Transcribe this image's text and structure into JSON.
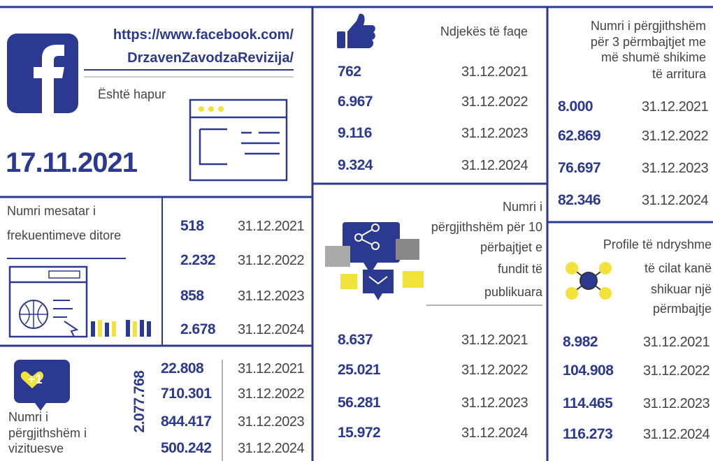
{
  "facebook": {
    "url_line1": "https://www.facebook.com/",
    "url_line2": "DrzavenZavodzaRevizija/",
    "opened_label": "Është hapur",
    "opened_date": "17.11.2021"
  },
  "daily_visits": {
    "label_lines": [
      "Numri mesatar i",
      "frekuentimeve ditore"
    ],
    "rows": [
      {
        "value": "518",
        "date": "31.12.2021"
      },
      {
        "value": "2.232",
        "date": "31.12.2022"
      },
      {
        "value": "858",
        "date": "31.12.2023"
      },
      {
        "value": "2.678",
        "date": "31.12.2024"
      }
    ]
  },
  "visitors": {
    "icon_label": "+1",
    "label_lines": [
      "Numri i",
      "përgjithshëm  i",
      "vizituesve"
    ],
    "total": "2.077.768",
    "rows": [
      {
        "value": "22.808",
        "date": "31.12.2021"
      },
      {
        "value": "710.301",
        "date": "31.12.2022"
      },
      {
        "value": "844.417",
        "date": "31.12.2023"
      },
      {
        "value": "500.242",
        "date": "31.12.2024"
      }
    ]
  },
  "followers": {
    "label": "Ndjekës të faqe",
    "rows": [
      {
        "value": "762",
        "date": "31.12.2021"
      },
      {
        "value": "6.967",
        "date": "31.12.2022"
      },
      {
        "value": "9.116",
        "date": "31.12.2023"
      },
      {
        "value": "9.324",
        "date": "31.12.2024"
      }
    ]
  },
  "last_posts": {
    "label_lines": [
      "Numri i",
      "përgjithshëm për 10",
      "përbajtjet e",
      "fundit të",
      "publikuara"
    ],
    "rows": [
      {
        "value": "8.637",
        "date": "31.12.2021"
      },
      {
        "value": "25.021",
        "date": "31.12.2022"
      },
      {
        "value": "56.281",
        "date": "31.12.2023"
      },
      {
        "value": "15.972",
        "date": "31.12.2024"
      }
    ]
  },
  "top_posts": {
    "label_lines": [
      "Numri i përgjithshëm",
      "për 3 përmbajtjet me",
      "më shumë shikime",
      "të arritura"
    ],
    "rows": [
      {
        "value": "8.000",
        "date": "31.12.2021"
      },
      {
        "value": "62.869",
        "date": "31.12.2022"
      },
      {
        "value": "76.697",
        "date": "31.12.2023"
      },
      {
        "value": "82.346",
        "date": "31.12.2024"
      }
    ]
  },
  "profiles": {
    "label_lines": [
      "Profile të ndryshme",
      "të cilat kanë",
      "shikuar një",
      "përmbajtje"
    ],
    "rows": [
      {
        "value": "8.982",
        "date": "31.12.2021"
      },
      {
        "value": "104.908",
        "date": "31.12.2022"
      },
      {
        "value": "114.465",
        "date": "31.12.2023"
      },
      {
        "value": "116.273",
        "date": "31.12.2024"
      }
    ]
  }
}
